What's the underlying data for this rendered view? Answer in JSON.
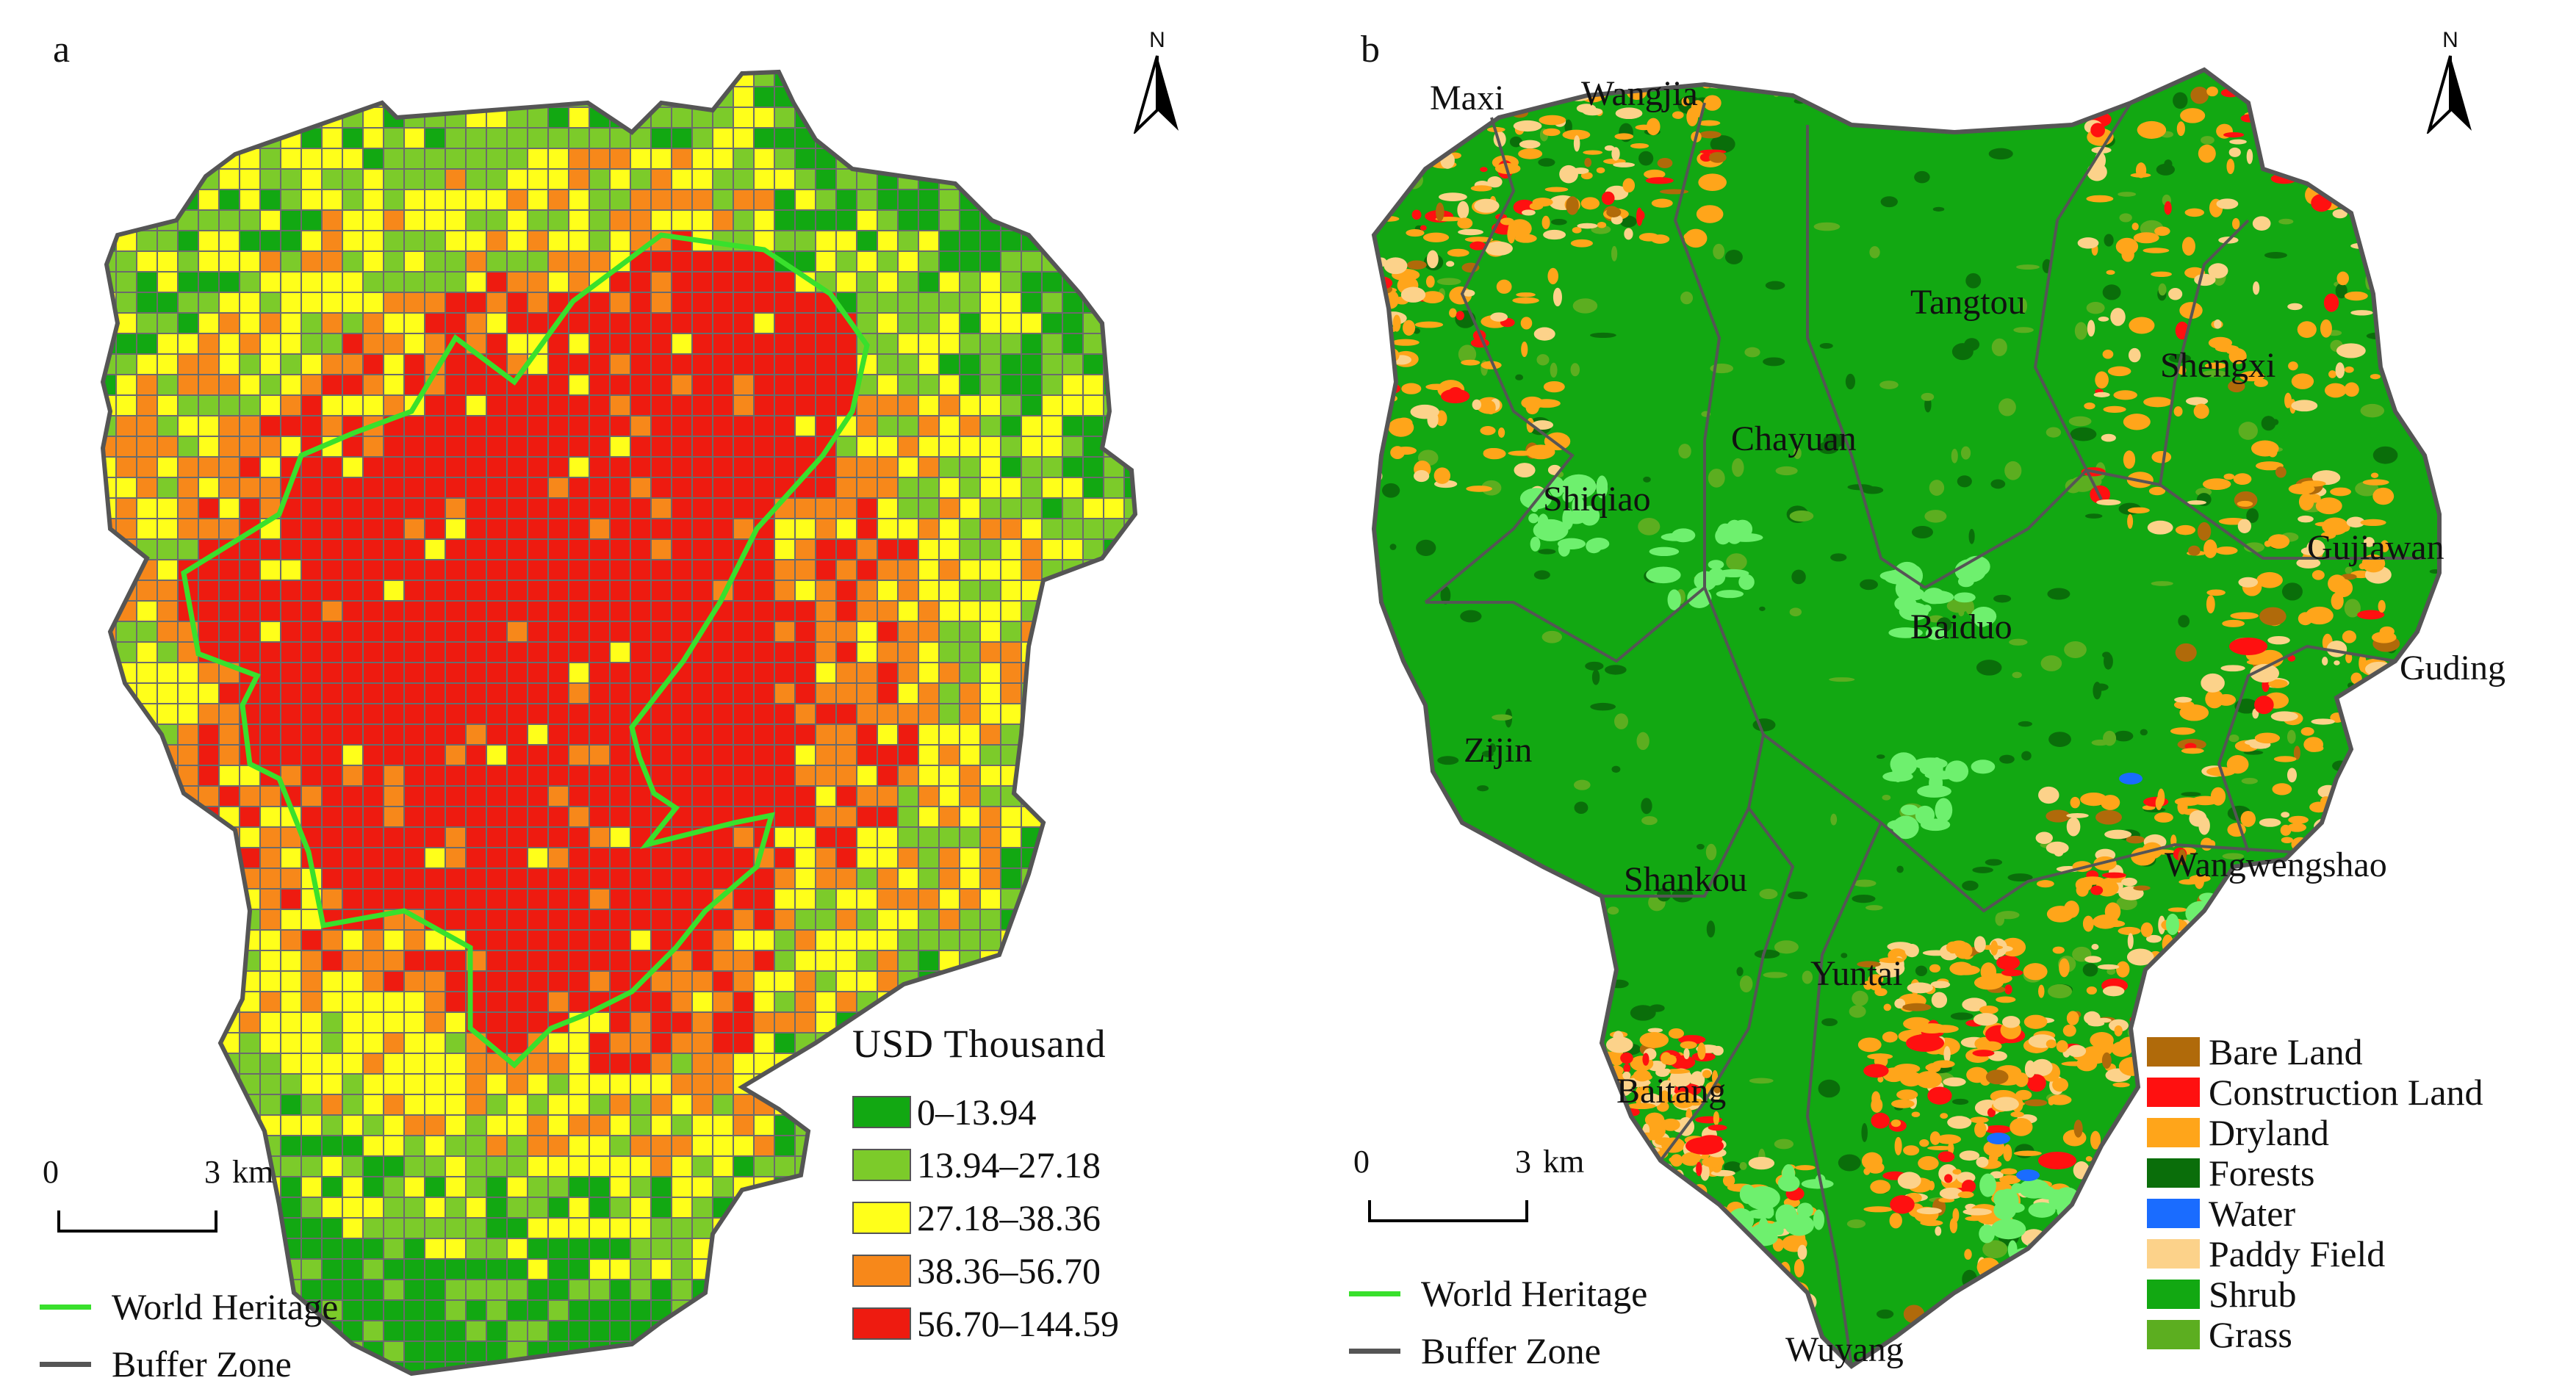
{
  "panel_a": {
    "letter": "a",
    "north": "N",
    "scale": {
      "start": "0",
      "end": "3",
      "unit": "km"
    },
    "legend_title": "USD Thousand",
    "classes": [
      {
        "label": "0–13.94",
        "color": "#12a812"
      },
      {
        "label": "13.94–27.18",
        "color": "#7ccb2a"
      },
      {
        "label": "27.18–38.36",
        "color": "#ffff1a"
      },
      {
        "label": "38.36–56.70",
        "color": "#f7881a"
      },
      {
        "label": "56.70–144.59",
        "color": "#ee1b10"
      }
    ],
    "lines": [
      {
        "label": "World Heritage",
        "color": "#39e02c"
      },
      {
        "label": "Buffer Zone",
        "color": "#555555"
      }
    ]
  },
  "panel_b": {
    "letter": "b",
    "north": "N",
    "scale": {
      "start": "0",
      "end": "3",
      "unit": "km"
    },
    "land_use": [
      {
        "label": "Bare Land",
        "color": "#b06a0a"
      },
      {
        "label": "Construction Land",
        "color": "#ff1010"
      },
      {
        "label": "Dryland",
        "color": "#ffa51a"
      },
      {
        "label": "Forests",
        "color": "#0a6e0a"
      },
      {
        "label": "Water",
        "color": "#1a6cff"
      },
      {
        "label": "Paddy Field",
        "color": "#fcd28a"
      },
      {
        "label": "Shrub",
        "color": "#12a812"
      },
      {
        "label": "Grass",
        "color": "#5cae20"
      }
    ],
    "lines": [
      {
        "label": "World Heritage",
        "color": "#39e02c"
      },
      {
        "label": "Buffer Zone",
        "color": "#555555"
      }
    ],
    "places": [
      {
        "id": "wangjia",
        "name": "Wangjia"
      },
      {
        "id": "maxi",
        "name": "Maxi"
      },
      {
        "id": "tangtou",
        "name": "Tangtou"
      },
      {
        "id": "shengxi",
        "name": "Shengxi"
      },
      {
        "id": "chayuan",
        "name": "Chayuan"
      },
      {
        "id": "shiqiao",
        "name": "Shiqiao"
      },
      {
        "id": "gujiawan",
        "name": "Gujiawan"
      },
      {
        "id": "baiduo",
        "name": "Baiduo"
      },
      {
        "id": "guding",
        "name": "Guding"
      },
      {
        "id": "zijin",
        "name": "Zijin"
      },
      {
        "id": "wangwengshao",
        "name": "Wangwengshao"
      },
      {
        "id": "shankou",
        "name": "Shankou"
      },
      {
        "id": "yuntai",
        "name": "Yuntai"
      },
      {
        "id": "baitang",
        "name": "Baitang"
      },
      {
        "id": "wuyang",
        "name": "Wuyang"
      }
    ]
  }
}
